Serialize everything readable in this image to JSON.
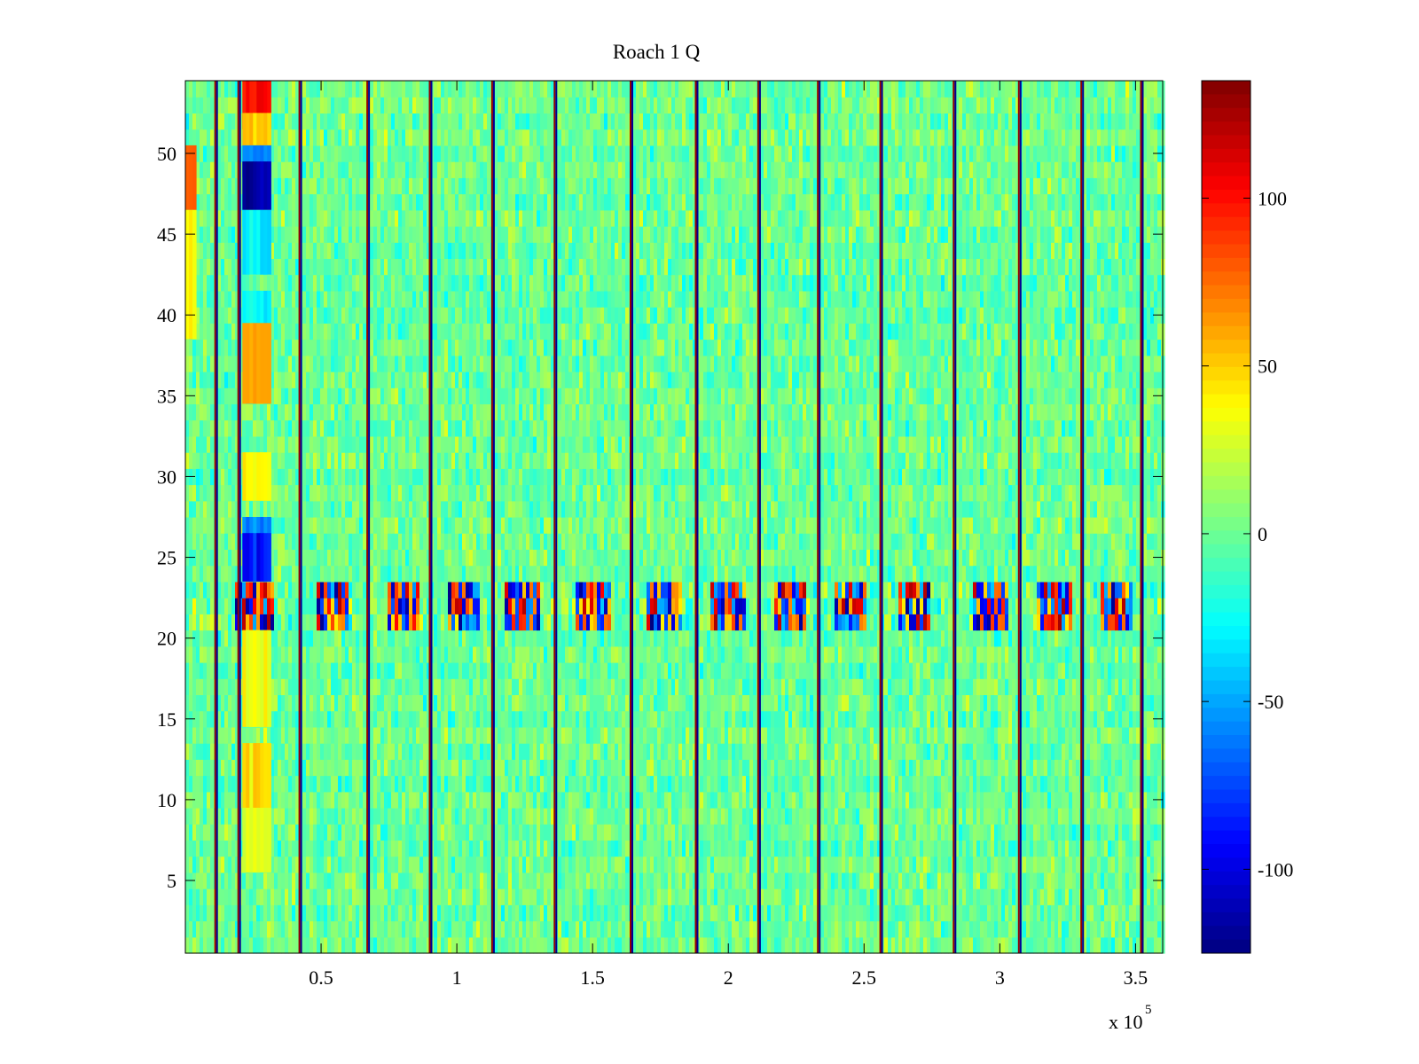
{
  "chart_data": {
    "type": "heatmap",
    "title": "Roach 1 Q",
    "xlabel": "",
    "ylabel": "",
    "x_range": [
      0,
      360000
    ],
    "y_range": [
      0.5,
      54.5
    ],
    "x_multiplier_label": "x 10",
    "x_multiplier_exponent": "5",
    "x_ticks": [
      {
        "value": 50000,
        "label": "0.5"
      },
      {
        "value": 100000,
        "label": "1"
      },
      {
        "value": 150000,
        "label": "1.5"
      },
      {
        "value": 200000,
        "label": "2"
      },
      {
        "value": 250000,
        "label": "2.5"
      },
      {
        "value": 300000,
        "label": "3"
      },
      {
        "value": 350000,
        "label": "3.5"
      }
    ],
    "y_ticks": [
      {
        "value": 5,
        "label": "5"
      },
      {
        "value": 10,
        "label": "10"
      },
      {
        "value": 15,
        "label": "15"
      },
      {
        "value": 20,
        "label": "20"
      },
      {
        "value": 25,
        "label": "25"
      },
      {
        "value": 30,
        "label": "30"
      },
      {
        "value": 35,
        "label": "35"
      },
      {
        "value": 40,
        "label": "40"
      },
      {
        "value": 45,
        "label": "45"
      },
      {
        "value": 50,
        "label": "50"
      }
    ],
    "colorbar": {
      "colormap": "jet",
      "range": [
        -125,
        135
      ],
      "ticks": [
        {
          "value": 100,
          "label": "100"
        },
        {
          "value": 50,
          "label": "50"
        },
        {
          "value": 0,
          "label": "0"
        },
        {
          "value": -50,
          "label": "-50"
        },
        {
          "value": -100,
          "label": "-100"
        }
      ]
    },
    "background_value": 0,
    "vertical_stripe_x": [
      11000,
      19500,
      42000,
      67000,
      90000,
      113000,
      136000,
      164000,
      188000,
      211000,
      233000,
      256000,
      283000,
      307000,
      330000,
      352000
    ],
    "noisy_row_band": {
      "y_from": 21,
      "y_to": 23
    },
    "noisy_row_bursts_x": [
      [
        18000,
        32000
      ],
      [
        48000,
        60000
      ],
      [
        74000,
        86000
      ],
      [
        96000,
        108000
      ],
      [
        118000,
        130000
      ],
      [
        143000,
        156000
      ],
      [
        170000,
        182000
      ],
      [
        193000,
        206000
      ],
      [
        216000,
        228000
      ],
      [
        239000,
        250000
      ],
      [
        262000,
        274000
      ],
      [
        290000,
        302000
      ],
      [
        313000,
        326000
      ],
      [
        336000,
        348000
      ]
    ],
    "feature_blocks": [
      {
        "x": [
          21000,
          31000
        ],
        "y": [
          52,
          54
        ],
        "value": 100
      },
      {
        "x": [
          21000,
          31000
        ],
        "y": [
          50,
          52
        ],
        "value": 50
      },
      {
        "x": [
          21000,
          31000
        ],
        "y": [
          49,
          50
        ],
        "value": -60
      },
      {
        "x": [
          21000,
          31000
        ],
        "y": [
          47,
          49
        ],
        "value": -115
      },
      {
        "x": [
          21000,
          31000
        ],
        "y": [
          43,
          46
        ],
        "value": -30
      },
      {
        "x": [
          21000,
          31000
        ],
        "y": [
          39,
          41
        ],
        "value": -30
      },
      {
        "x": [
          21000,
          31000
        ],
        "y": [
          35,
          39
        ],
        "value": 55
      },
      {
        "x": [
          21000,
          31000
        ],
        "y": [
          29,
          31
        ],
        "value": 40
      },
      {
        "x": [
          21000,
          31000
        ],
        "y": [
          26,
          27
        ],
        "value": -55
      },
      {
        "x": [
          21000,
          31000
        ],
        "y": [
          24,
          26
        ],
        "value": -85
      },
      {
        "x": [
          21000,
          31000
        ],
        "y": [
          15,
          20
        ],
        "value": 35
      },
      {
        "x": [
          21000,
          31000
        ],
        "y": [
          10,
          13
        ],
        "value": 45
      },
      {
        "x": [
          21000,
          31000
        ],
        "y": [
          6,
          9
        ],
        "value": 30
      },
      {
        "x": [
          0,
          3000
        ],
        "y": [
          47,
          50
        ],
        "value": 80
      },
      {
        "x": [
          0,
          3000
        ],
        "y": [
          39,
          46
        ],
        "value": 40
      }
    ]
  }
}
